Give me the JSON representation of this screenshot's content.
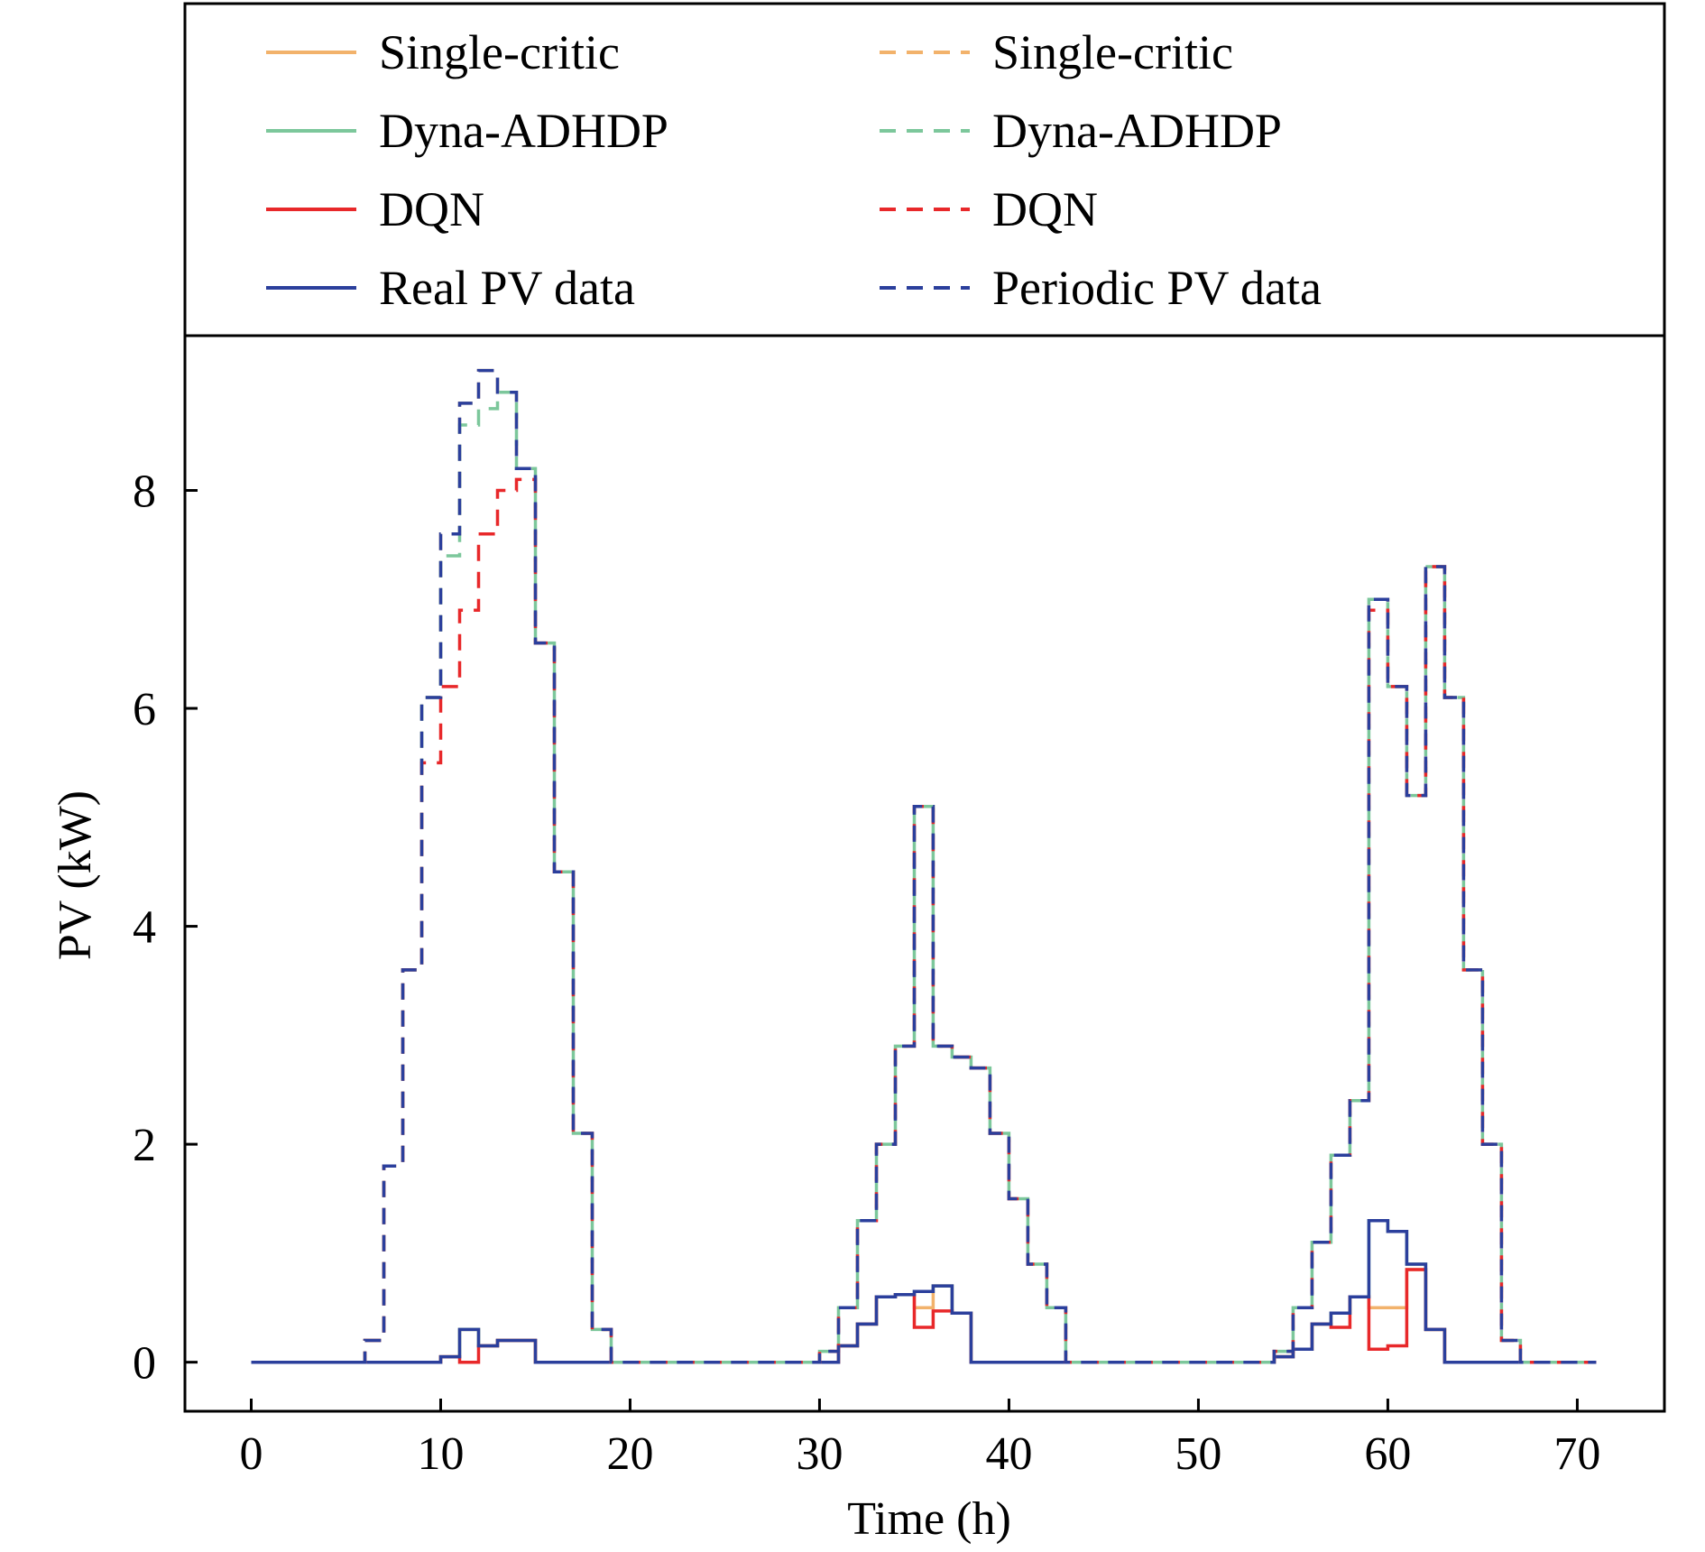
{
  "chart_data": {
    "type": "line",
    "step": "post",
    "xlabel": "Time (h)",
    "ylabel": "PV (kW)",
    "xlim": [
      -3.5,
      74.6
    ],
    "ylim": [
      -0.45,
      9.42
    ],
    "xticks": [
      0,
      10,
      20,
      30,
      40,
      50,
      60,
      70
    ],
    "yticks": [
      0,
      2,
      4,
      6,
      8
    ],
    "grid": false,
    "legend_position": "top",
    "legend_columns": 2,
    "x": [
      0,
      1,
      2,
      3,
      4,
      5,
      6,
      7,
      8,
      9,
      10,
      11,
      12,
      13,
      14,
      15,
      16,
      17,
      18,
      19,
      20,
      21,
      22,
      23,
      24,
      25,
      26,
      27,
      28,
      29,
      30,
      31,
      32,
      33,
      34,
      35,
      36,
      37,
      38,
      39,
      40,
      41,
      42,
      43,
      44,
      45,
      46,
      47,
      48,
      49,
      50,
      51,
      52,
      53,
      54,
      55,
      56,
      57,
      58,
      59,
      60,
      61,
      62,
      63,
      64,
      65,
      66,
      67,
      68,
      69,
      70,
      71
    ],
    "series": [
      {
        "name": "Single-critic",
        "color": "#f2b26b",
        "dash": "solid",
        "values": [
          0,
          0,
          0,
          0,
          0,
          0,
          0,
          0,
          0,
          0,
          0.05,
          0.3,
          0.15,
          0.2,
          0.2,
          0,
          0,
          0,
          0,
          0,
          0,
          0,
          0,
          0,
          0,
          0,
          0,
          0,
          0,
          0,
          0,
          0.15,
          0.35,
          0.6,
          0.62,
          0.5,
          0.7,
          0.45,
          0,
          0,
          0,
          0,
          0,
          0,
          0,
          0,
          0,
          0,
          0,
          0,
          0,
          0,
          0,
          0,
          0.05,
          0.12,
          0.35,
          0.45,
          0.6,
          0.5,
          0.5,
          0.85,
          0.3,
          0,
          0,
          0,
          0,
          0,
          0,
          0,
          0,
          0
        ]
      },
      {
        "name": "Dyna-ADHDP",
        "color": "#7cc79b",
        "dash": "solid",
        "values": [
          0,
          0,
          0,
          0,
          0,
          0,
          0,
          0,
          0,
          0,
          0.05,
          0.3,
          0.15,
          0.2,
          0.2,
          0,
          0,
          0,
          0,
          0,
          0,
          0,
          0,
          0,
          0,
          0,
          0,
          0,
          0,
          0,
          0,
          0.15,
          0.35,
          0.6,
          0.62,
          0.65,
          0.7,
          0.45,
          0,
          0,
          0,
          0,
          0,
          0,
          0,
          0,
          0,
          0,
          0,
          0,
          0,
          0,
          0,
          0,
          0.05,
          0.12,
          0.35,
          0.45,
          0.6,
          1.3,
          1.2,
          0.9,
          0.3,
          0,
          0,
          0,
          0,
          0,
          0,
          0,
          0,
          0
        ]
      },
      {
        "name": "DQN",
        "color": "#e8282a",
        "dash": "solid",
        "values": [
          0,
          0,
          0,
          0,
          0,
          0,
          0,
          0,
          0,
          0,
          0.05,
          0,
          0.15,
          0.2,
          0.2,
          0,
          0,
          0,
          0,
          0,
          0,
          0,
          0,
          0,
          0,
          0,
          0,
          0,
          0,
          0,
          0,
          0.15,
          0.35,
          0.6,
          0.62,
          0.32,
          0.47,
          0.45,
          0,
          0,
          0,
          0,
          0,
          0,
          0,
          0,
          0,
          0,
          0,
          0,
          0,
          0,
          0,
          0,
          0.05,
          0.12,
          0.35,
          0.32,
          0.6,
          0.12,
          0.15,
          0.85,
          0.3,
          0,
          0,
          0,
          0,
          0,
          0,
          0,
          0,
          0
        ]
      },
      {
        "name": "Real PV data",
        "color": "#2b3f9c",
        "dash": "solid",
        "values": [
          0,
          0,
          0,
          0,
          0,
          0,
          0,
          0,
          0,
          0,
          0.05,
          0.3,
          0.15,
          0.2,
          0.2,
          0,
          0,
          0,
          0,
          0,
          0,
          0,
          0,
          0,
          0,
          0,
          0,
          0,
          0,
          0,
          0,
          0.15,
          0.35,
          0.6,
          0.62,
          0.65,
          0.7,
          0.45,
          0,
          0,
          0,
          0,
          0,
          0,
          0,
          0,
          0,
          0,
          0,
          0,
          0,
          0,
          0,
          0,
          0.05,
          0.12,
          0.35,
          0.45,
          0.6,
          1.3,
          1.2,
          0.9,
          0.3,
          0,
          0,
          0,
          0,
          0,
          0,
          0,
          0,
          0
        ]
      },
      {
        "name": "Single-critic",
        "color": "#f2b26b",
        "dash": "dashed",
        "values": [
          0,
          0,
          0,
          0,
          0,
          0,
          0.2,
          1.8,
          3.6,
          6.1,
          7.6,
          8.8,
          9.1,
          8.9,
          8.2,
          6.6,
          4.5,
          2.1,
          0.3,
          0,
          0,
          0,
          0,
          0,
          0,
          0,
          0,
          0,
          0,
          0,
          0.1,
          0.5,
          1.3,
          2.0,
          2.9,
          5.1,
          2.9,
          2.8,
          2.7,
          2.1,
          1.5,
          0.9,
          0.5,
          0,
          0,
          0,
          0,
          0,
          0,
          0,
          0,
          0,
          0,
          0,
          0.1,
          0.5,
          1.1,
          1.9,
          2.4,
          7.0,
          6.2,
          5.2,
          7.3,
          6.1,
          3.6,
          2.0,
          0.2,
          0,
          0,
          0,
          0,
          0
        ]
      },
      {
        "name": "Dyna-ADHDP",
        "color": "#7cc79b",
        "dash": "dashed",
        "values": [
          0,
          0,
          0,
          0,
          0,
          0,
          0.2,
          1.8,
          3.6,
          6.1,
          7.4,
          8.6,
          8.75,
          8.9,
          8.2,
          6.6,
          4.5,
          2.1,
          0.3,
          0,
          0,
          0,
          0,
          0,
          0,
          0,
          0,
          0,
          0,
          0,
          0.1,
          0.5,
          1.3,
          2.0,
          2.9,
          5.1,
          2.9,
          2.8,
          2.7,
          2.1,
          1.5,
          0.9,
          0.5,
          0,
          0,
          0,
          0,
          0,
          0,
          0,
          0,
          0,
          0,
          0,
          0.1,
          0.5,
          1.1,
          1.9,
          2.4,
          7.0,
          6.2,
          5.2,
          7.3,
          6.1,
          3.6,
          2.0,
          0.2,
          0,
          0,
          0,
          0,
          0
        ]
      },
      {
        "name": "DQN",
        "color": "#e8282a",
        "dash": "dashed",
        "values": [
          0,
          0,
          0,
          0,
          0,
          0,
          0.2,
          1.8,
          3.6,
          5.5,
          6.2,
          6.9,
          7.6,
          8.0,
          8.1,
          6.6,
          4.5,
          2.1,
          0.3,
          0,
          0,
          0,
          0,
          0,
          0,
          0,
          0,
          0,
          0,
          0,
          0.1,
          0.5,
          1.3,
          2.0,
          2.9,
          5.1,
          2.9,
          2.8,
          2.7,
          2.1,
          1.5,
          0.9,
          0.5,
          0,
          0,
          0,
          0,
          0,
          0,
          0,
          0,
          0,
          0,
          0,
          0.1,
          0.5,
          1.1,
          1.9,
          2.4,
          6.9,
          6.2,
          5.2,
          7.3,
          6.1,
          3.6,
          2.0,
          0.2,
          0,
          0,
          0,
          0,
          0
        ]
      },
      {
        "name": "Periodic PV data",
        "color": "#2b3f9c",
        "dash": "dashed",
        "values": [
          0,
          0,
          0,
          0,
          0,
          0,
          0.2,
          1.8,
          3.6,
          6.1,
          7.6,
          8.8,
          9.1,
          8.9,
          8.2,
          6.6,
          4.5,
          2.1,
          0.3,
          0,
          0,
          0,
          0,
          0,
          0,
          0,
          0,
          0,
          0,
          0,
          0.1,
          0.5,
          1.3,
          2.0,
          2.9,
          5.1,
          2.9,
          2.8,
          2.7,
          2.1,
          1.5,
          0.9,
          0.5,
          0,
          0,
          0,
          0,
          0,
          0,
          0,
          0,
          0,
          0,
          0,
          0.1,
          0.5,
          1.1,
          1.9,
          2.4,
          7.0,
          6.2,
          5.2,
          7.3,
          6.1,
          3.6,
          2.0,
          0.2,
          0,
          0,
          0,
          0,
          0
        ]
      }
    ]
  }
}
